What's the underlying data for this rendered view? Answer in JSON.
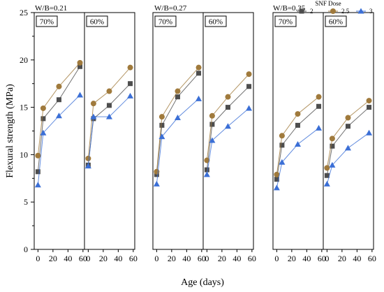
{
  "chart_data": {
    "type": "line",
    "ylabel": "Flexural strength (MPa)",
    "xlabel": "Age (days)",
    "ylim": [
      0,
      25
    ],
    "yticks": [
      0,
      5,
      10,
      15,
      20,
      25
    ],
    "xlim": [
      -5,
      62
    ],
    "xticks": [
      0,
      20,
      40,
      60
    ],
    "legend": {
      "title": "SNF Dose",
      "placement": "top-right",
      "entries": [
        {
          "label": "2",
          "color": "#4d4d4d",
          "marker": "square"
        },
        {
          "label": "2.5",
          "color": "#a07a3c",
          "marker": "circle"
        },
        {
          "label": "3",
          "color": "#3b6fd6",
          "marker": "triangle"
        }
      ]
    },
    "groups": [
      {
        "title": "W/B=0.21"
      },
      {
        "title": "W/B=0.27"
      },
      {
        "title": "W/B=0.35"
      }
    ],
    "panels": [
      {
        "group": 0,
        "label": "70%",
        "series": [
          {
            "name": "2",
            "x": [
              0,
              7,
              28,
              56
            ],
            "y": [
              8.2,
              13.8,
              15.8,
              19.3
            ]
          },
          {
            "name": "2.5",
            "x": [
              0,
              7,
              28,
              56
            ],
            "y": [
              9.9,
              14.9,
              17.2,
              19.7
            ]
          },
          {
            "name": "3",
            "x": [
              0,
              7,
              28,
              56
            ],
            "y": [
              6.8,
              12.3,
              14.1,
              16.3
            ]
          }
        ]
      },
      {
        "group": 0,
        "label": "60%",
        "series": [
          {
            "name": "2",
            "x": [
              0,
              7,
              28,
              56
            ],
            "y": [
              8.9,
              13.8,
              15.2,
              17.5
            ]
          },
          {
            "name": "2.5",
            "x": [
              0,
              7,
              28,
              56
            ],
            "y": [
              9.6,
              15.4,
              16.7,
              19.2
            ]
          },
          {
            "name": "3",
            "x": [
              0,
              7,
              28,
              56
            ],
            "y": [
              8.8,
              14.0,
              14.0,
              16.2
            ]
          }
        ]
      },
      {
        "group": 1,
        "label": "70%",
        "series": [
          {
            "name": "2",
            "x": [
              0,
              7,
              28,
              56
            ],
            "y": [
              7.9,
              13.1,
              16.1,
              18.6
            ]
          },
          {
            "name": "2.5",
            "x": [
              0,
              7,
              28,
              56
            ],
            "y": [
              8.2,
              14.0,
              16.7,
              19.2
            ]
          },
          {
            "name": "3",
            "x": [
              0,
              7,
              28,
              56
            ],
            "y": [
              6.9,
              11.9,
              13.9,
              15.9
            ]
          }
        ]
      },
      {
        "group": 1,
        "label": "60%",
        "series": [
          {
            "name": "2",
            "x": [
              0,
              7,
              28,
              56
            ],
            "y": [
              8.4,
              13.2,
              15.0,
              17.2
            ]
          },
          {
            "name": "2.5",
            "x": [
              0,
              7,
              28,
              56
            ],
            "y": [
              9.4,
              14.1,
              16.1,
              18.5
            ]
          },
          {
            "name": "3",
            "x": [
              0,
              7,
              28,
              56
            ],
            "y": [
              7.9,
              11.5,
              13.0,
              14.9
            ]
          }
        ]
      },
      {
        "group": 2,
        "label": "70%",
        "series": [
          {
            "name": "2",
            "x": [
              0,
              7,
              28,
              56
            ],
            "y": [
              7.4,
              11.0,
              13.1,
              15.1
            ]
          },
          {
            "name": "2.5",
            "x": [
              0,
              7,
              28,
              56
            ],
            "y": [
              7.9,
              12.0,
              14.3,
              16.1
            ]
          },
          {
            "name": "3",
            "x": [
              0,
              7,
              28,
              56
            ],
            "y": [
              6.5,
              9.2,
              11.1,
              12.8
            ]
          }
        ]
      },
      {
        "group": 2,
        "label": "60%",
        "series": [
          {
            "name": "2",
            "x": [
              0,
              7,
              28,
              56
            ],
            "y": [
              7.8,
              10.9,
              13.0,
              15.0
            ]
          },
          {
            "name": "2.5",
            "x": [
              0,
              7,
              28,
              56
            ],
            "y": [
              8.6,
              11.7,
              13.9,
              15.7
            ]
          },
          {
            "name": "3",
            "x": [
              0,
              7,
              28,
              56
            ],
            "y": [
              6.9,
              8.9,
              10.7,
              12.3
            ]
          }
        ]
      }
    ]
  }
}
